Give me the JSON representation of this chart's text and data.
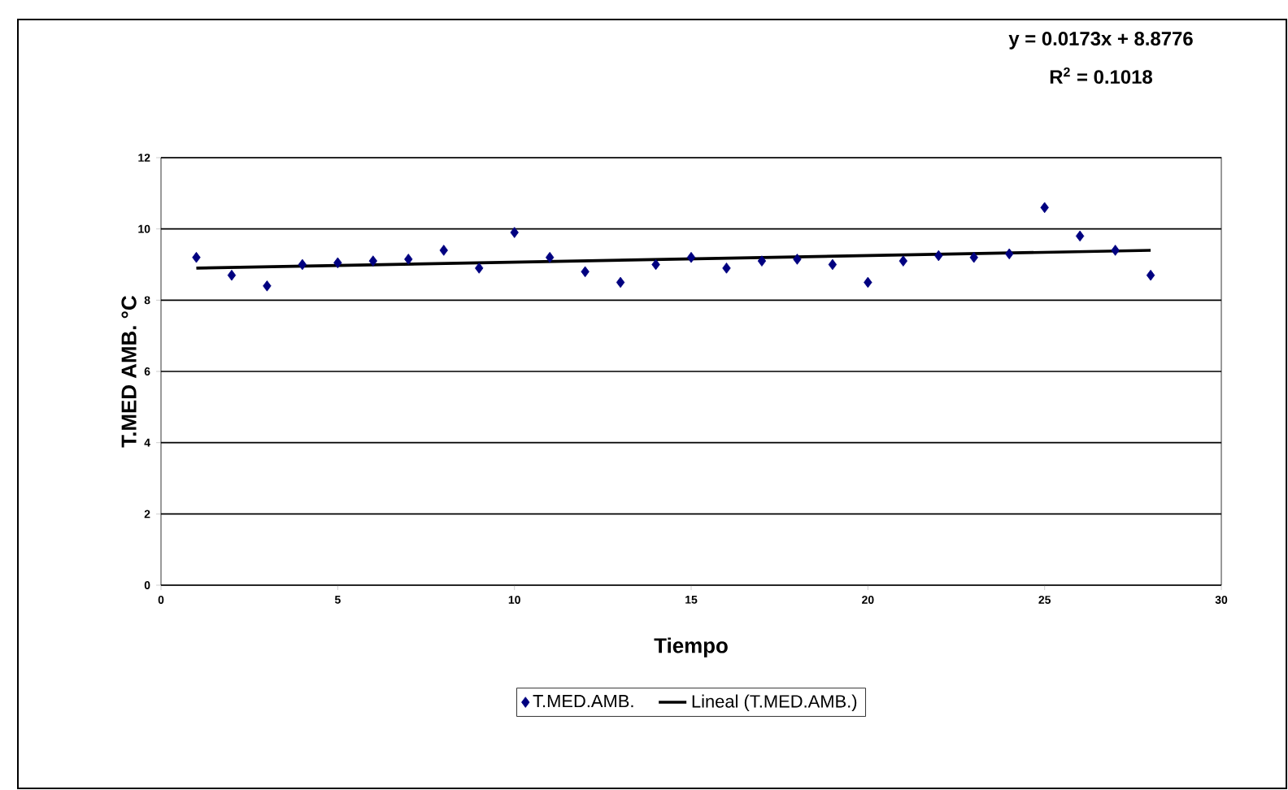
{
  "chart_data": {
    "type": "scatter",
    "xlabel": "Tiempo",
    "ylabel": "T.MED AMB. °C",
    "annotations": [
      "y = 0.0173x + 8.8776",
      "R$^{2}$ = 0.1018"
    ],
    "x": [
      1,
      2,
      3,
      4,
      5,
      6,
      7,
      8,
      9,
      10,
      11,
      12,
      13,
      14,
      15,
      16,
      17,
      18,
      19,
      20,
      21,
      22,
      23,
      24,
      25,
      26,
      27,
      28
    ],
    "series": [
      {
        "name": "T.MED.AMB.",
        "color": "#000080",
        "marker": "diamond",
        "values": [
          9.2,
          8.7,
          8.4,
          9.0,
          9.05,
          9.1,
          9.15,
          9.4,
          8.9,
          9.9,
          9.2,
          8.8,
          8.5,
          9.0,
          9.2,
          8.9,
          9.1,
          9.15,
          9.0,
          8.5,
          9.1,
          9.25,
          9.2,
          9.3,
          10.6,
          9.8,
          9.4,
          8.7
        ]
      },
      {
        "name": "Lineal (T.MED.AMB.)",
        "type": "line",
        "color": "#000000",
        "x": [
          1,
          28
        ],
        "values": [
          8.9,
          9.4
        ]
      }
    ],
    "xlim": [
      0,
      30
    ],
    "ylim": [
      0,
      12
    ],
    "xticks": [
      0,
      5,
      10,
      15,
      20,
      25,
      30
    ],
    "yticks": [
      0,
      2,
      4,
      6,
      8,
      10,
      12
    ],
    "grid": "y",
    "legend": "bottom"
  }
}
